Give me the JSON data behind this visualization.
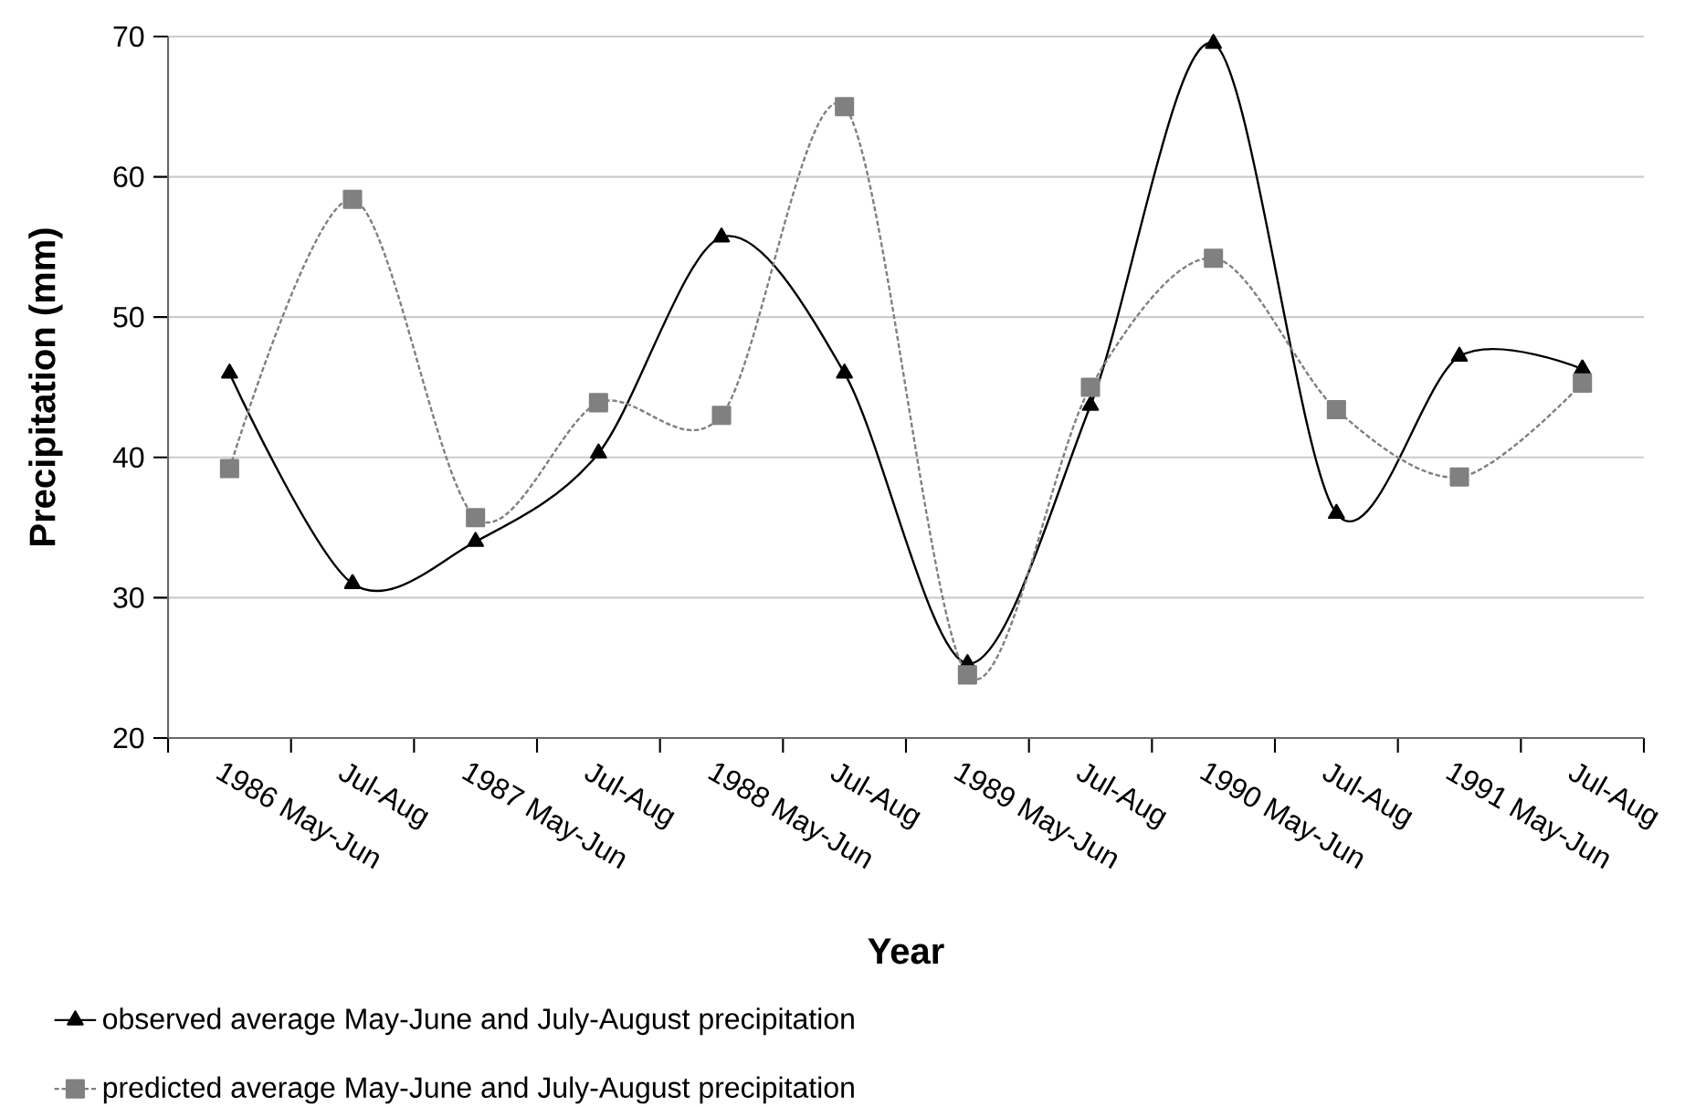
{
  "chart_data": {
    "type": "line",
    "xlabel": "Year",
    "ylabel": "Precipitation (mm)",
    "categories": [
      "1986 May-Jun",
      "Jul-Aug",
      "1987 May-Jun",
      "Jul-Aug",
      "1988 May-Jun",
      "Jul-Aug",
      "1989 May-Jun",
      "Jul-Aug",
      "1990 May-Jun",
      "Jul-Aug",
      "1991 May-Jun",
      "Jul-Aug"
    ],
    "series": [
      {
        "name": "observed average May-June and July-August precipitation",
        "color": "#000000",
        "marker": "triangle",
        "line_style": "solid",
        "values": [
          46,
          31,
          34,
          40.3,
          55.7,
          46,
          25.3,
          43.7,
          69.5,
          36,
          47.2,
          46.3
        ]
      },
      {
        "name": "predicted average May-June and July-August precipitation",
        "color": "#808080",
        "marker": "square",
        "line_style": "dashed",
        "values": [
          39.2,
          58.4,
          35.7,
          43.9,
          43,
          65,
          24.5,
          45,
          54.2,
          43.4,
          38.6,
          45.3
        ]
      }
    ],
    "ylim": [
      20,
      70
    ],
    "yticks": [
      20,
      30,
      40,
      50,
      60,
      70
    ],
    "grid": "y",
    "legend": "bottom"
  }
}
